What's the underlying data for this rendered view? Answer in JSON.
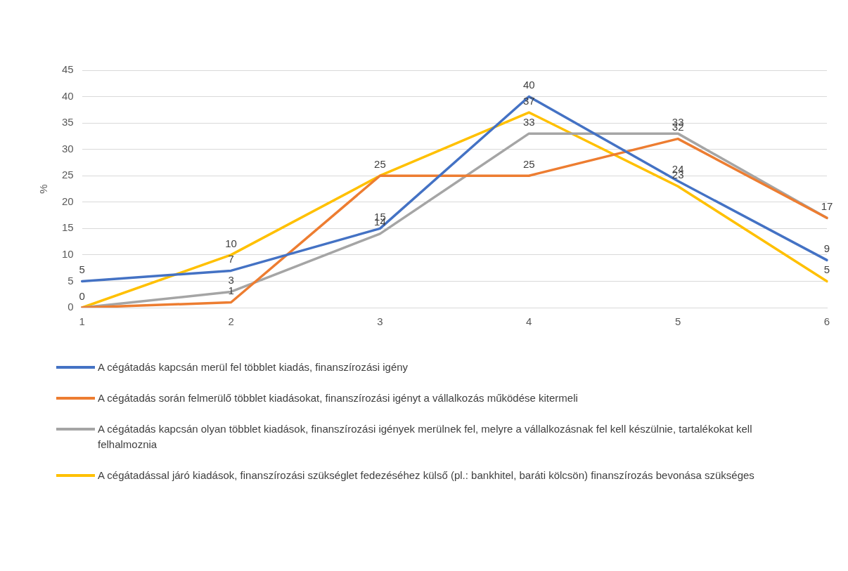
{
  "chart_data": {
    "type": "line",
    "ylabel": "%",
    "categories": [
      "1",
      "2",
      "3",
      "4",
      "5",
      "6"
    ],
    "series": [
      {
        "name": "A cégátadás kapcsán  merül fel többlet kiadás, finanszírozási igény",
        "color": "#4472c4",
        "values": [
          5,
          7,
          15,
          40,
          24,
          9
        ]
      },
      {
        "name": "A cégátadás során felmerülő többlet kiadásokat, finanszírozási igényt a vállalkozás működése kitermeli",
        "color": "#ed7d31",
        "values": [
          0,
          1,
          25,
          25,
          32,
          17
        ]
      },
      {
        "name": "A cégátadás kapcsán olyan többlet kiadások, finanszírozási igények merülnek fel, melyre a vállalkozásnak fel kell készülnie, tartalékokat kell felhalmoznia",
        "color": "#a5a5a5",
        "values": [
          0,
          3,
          14,
          33,
          33,
          17
        ],
        "value_labels": [
          null,
          "3",
          "14",
          "33",
          "33",
          null
        ]
      },
      {
        "name": "A cégátadással járó kiadások, finanszírozási szükséglet fedezéséhez külső (pl.: bankhitel, baráti kölcsön) finanszírozás bevonása szükséges",
        "color": "#ffc000",
        "values": [
          0,
          10,
          25,
          37,
          23,
          5
        ],
        "value_labels": [
          null,
          "10",
          null,
          "37",
          "23",
          "5"
        ]
      }
    ],
    "ylim": [
      0,
      45
    ],
    "yticks": [
      0,
      5,
      10,
      15,
      20,
      25,
      30,
      35,
      40,
      45
    ],
    "grid": "y",
    "legend": "bottom",
    "data_labels": true,
    "marker": "none",
    "line_style": "solid"
  }
}
